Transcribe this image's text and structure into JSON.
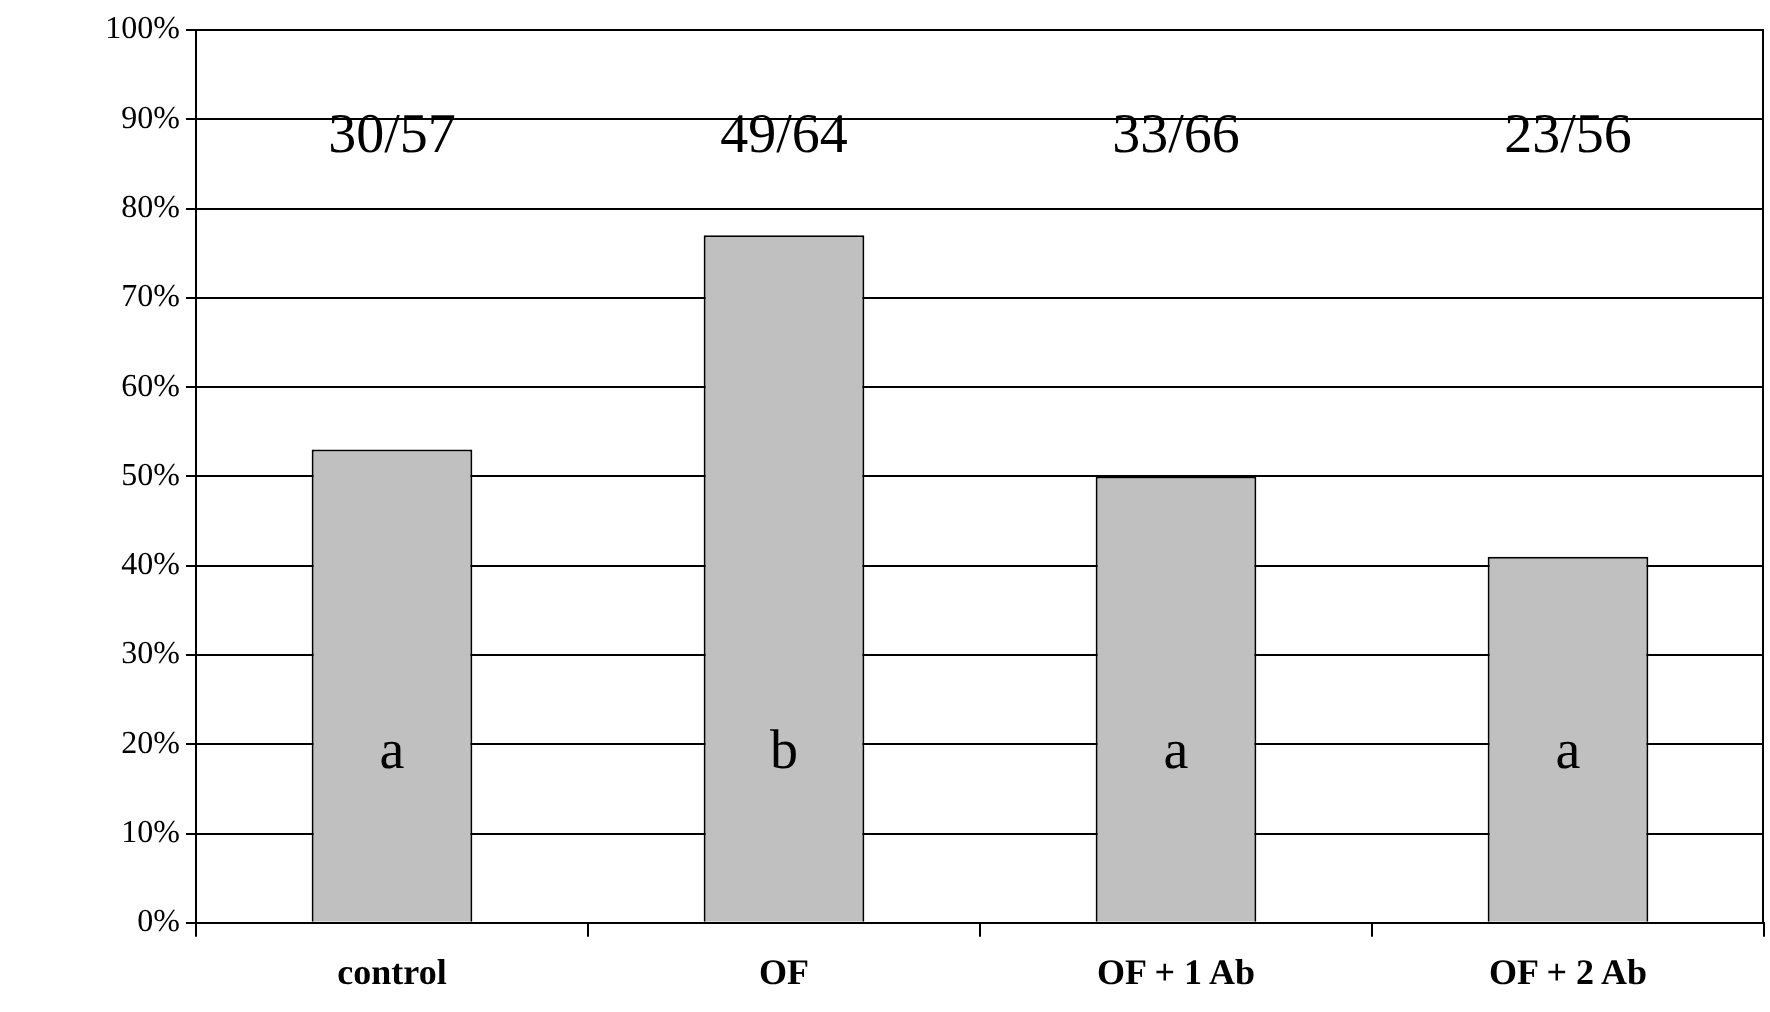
{
  "chart_data": {
    "type": "bar",
    "categories": [
      "control",
      "OF",
      "OF + 1 Ab",
      "OF + 2 Ab"
    ],
    "values": [
      53,
      77,
      50,
      41
    ],
    "color": "#c0c0c0",
    "ylim": [
      0,
      100
    ],
    "yticks": [
      {
        "value": 0,
        "label": "0%"
      },
      {
        "value": 10,
        "label": "10%"
      },
      {
        "value": 20,
        "label": "20%"
      },
      {
        "value": 30,
        "label": "30%"
      },
      {
        "value": 40,
        "label": "40%"
      },
      {
        "value": 50,
        "label": "50%"
      },
      {
        "value": 60,
        "label": "60%"
      },
      {
        "value": 70,
        "label": "70%"
      },
      {
        "value": 80,
        "label": "80%"
      },
      {
        "value": 90,
        "label": "90%"
      },
      {
        "value": 100,
        "label": "100%"
      }
    ],
    "grid": "y",
    "legend": false,
    "annotations": [
      "30/57",
      "49/64",
      "33/66",
      "23/56",
      "a",
      "b",
      "a",
      "a"
    ]
  }
}
